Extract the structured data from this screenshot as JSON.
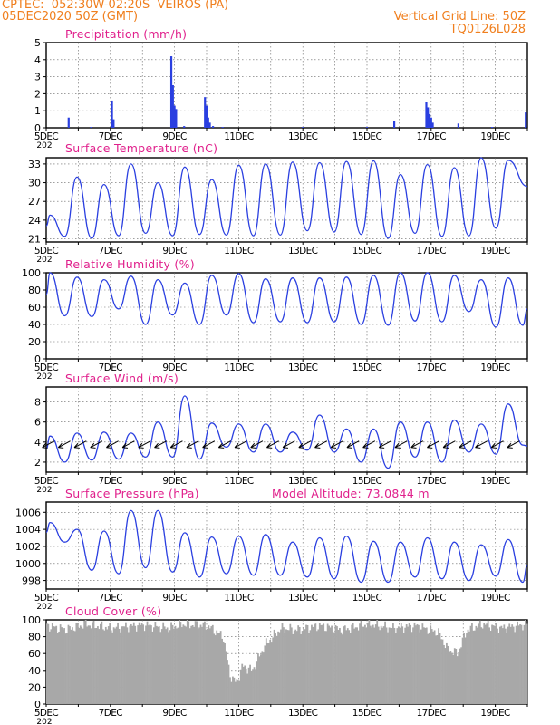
{
  "header": {
    "line1": "CPTEC:  052:30W-02:20S  VEIROS (PA)",
    "line2": "05DEC2020 50Z (GMT)",
    "grid_note": "Vertical Grid Line: 50Z",
    "code": "TQ0126L028"
  },
  "colors": {
    "header": "#f07f1e",
    "title": "#e0208c",
    "series": "#2a3fe0",
    "cloud": "#a8a8a8"
  },
  "x_axis": {
    "tick_labels": [
      "5DEC",
      "7DEC",
      "9DEC",
      "11DEC",
      "13DEC",
      "15DEC",
      "17DEC",
      "19DEC"
    ],
    "year_fragment": "202"
  },
  "chart_data": [
    {
      "type": "bar",
      "title": "Precipitation (mm/h)",
      "ylim": [
        0,
        5
      ],
      "yticks": [
        0,
        1,
        2,
        3,
        4,
        5
      ],
      "x_range_days": [
        5,
        20
      ],
      "bars": [
        {
          "x": 5.7,
          "y": 0.6
        },
        {
          "x": 6.4,
          "y": 0.05
        },
        {
          "x": 7.05,
          "y": 1.6
        },
        {
          "x": 7.1,
          "y": 0.5
        },
        {
          "x": 8.9,
          "y": 4.2
        },
        {
          "x": 8.95,
          "y": 2.5
        },
        {
          "x": 9.0,
          "y": 1.3
        },
        {
          "x": 9.05,
          "y": 1.1
        },
        {
          "x": 9.3,
          "y": 0.1
        },
        {
          "x": 9.95,
          "y": 1.8
        },
        {
          "x": 10.0,
          "y": 1.3
        },
        {
          "x": 10.05,
          "y": 0.6
        },
        {
          "x": 10.1,
          "y": 0.3
        },
        {
          "x": 10.2,
          "y": 0.1
        },
        {
          "x": 10.5,
          "y": 0.05
        },
        {
          "x": 13.0,
          "y": 0.05
        },
        {
          "x": 15.0,
          "y": 0.05
        },
        {
          "x": 15.85,
          "y": 0.4
        },
        {
          "x": 16.85,
          "y": 1.5
        },
        {
          "x": 16.9,
          "y": 1.2
        },
        {
          "x": 16.95,
          "y": 0.8
        },
        {
          "x": 17.0,
          "y": 0.6
        },
        {
          "x": 17.05,
          "y": 0.3
        },
        {
          "x": 17.85,
          "y": 0.25
        },
        {
          "x": 18.9,
          "y": 0.05
        },
        {
          "x": 19.95,
          "y": 0.9
        }
      ]
    },
    {
      "type": "line",
      "title": "Surface Temperature (nC)",
      "ylim": [
        20.5,
        34
      ],
      "yticks": [
        21,
        24,
        27,
        30,
        33
      ],
      "peaks": [
        24.8,
        30.9,
        29.7,
        33.0,
        30.0,
        32.5,
        30.5,
        32.8,
        33.0,
        33.3,
        33.2,
        33.4,
        33.5,
        31.3,
        32.9,
        32.4,
        34.0,
        33.6
      ],
      "troughs": [
        21.4,
        21.1,
        21.5,
        21.9,
        21.5,
        21.7,
        21.6,
        21.5,
        21.6,
        22.3,
        22.1,
        21.7,
        21.1,
        21.9,
        21.4,
        21.5,
        22.7
      ],
      "end_value": 29.4
    },
    {
      "type": "line",
      "title": "Relative Humidity (%)",
      "ylim": [
        0,
        100
      ],
      "yticks": [
        0,
        20,
        40,
        60,
        80,
        100
      ],
      "peaks": [
        100,
        95,
        92,
        96,
        92,
        88,
        97,
        99,
        93,
        94,
        94,
        95,
        97,
        100,
        100,
        97,
        92,
        94
      ],
      "troughs": [
        50,
        49,
        58,
        40,
        51,
        40,
        51,
        42,
        43,
        42,
        43,
        40,
        39,
        44,
        43,
        55,
        37,
        39
      ],
      "end_value": 58
    },
    {
      "type": "line",
      "title": "Surface Wind (m/s)",
      "ylim": [
        1,
        9.5
      ],
      "yticks": [
        2,
        4,
        6,
        8
      ],
      "peaks": [
        4.6,
        4.9,
        5.0,
        4.9,
        6.0,
        8.6,
        5.9,
        5.8,
        5.8,
        5.0,
        6.7,
        5.3,
        5.3,
        6.0,
        6.0,
        6.2,
        5.8,
        7.8
      ],
      "troughs": [
        2.0,
        2.2,
        2.3,
        2.5,
        2.5,
        2.3,
        3.5,
        3.0,
        3.0,
        3.2,
        3.0,
        2.0,
        1.4,
        2.5,
        2.0,
        3.0,
        2.8,
        3.7
      ],
      "end_value": 3.6
    },
    {
      "type": "line",
      "title": "Surface Pressure (hPa)",
      "annotation": "Model Altitude: 73.0844 m",
      "ylim": [
        997,
        1007.2
      ],
      "yticks": [
        998,
        1000,
        1002,
        1004,
        1006
      ],
      "peaks": [
        1004.8,
        1004.0,
        1003.8,
        1006.2,
        1006.2,
        1003.6,
        1003.1,
        1003.2,
        1003.4,
        1002.5,
        1003.0,
        1003.2,
        1002.6,
        1002.5,
        1003.0,
        1002.5,
        1002.2,
        1002.8
      ],
      "troughs": [
        1002.5,
        999.2,
        998.8,
        999.5,
        999.0,
        998.4,
        998.8,
        998.6,
        998.6,
        998.4,
        998.2,
        997.8,
        997.8,
        998.4,
        998.2,
        998.0,
        998.5,
        997.8
      ],
      "end_value": 999.8
    },
    {
      "type": "bar",
      "title": "Cloud Cover (%)",
      "ylim": [
        0,
        100
      ],
      "yticks": [
        0,
        20,
        40,
        60,
        80,
        100
      ],
      "profile": [
        {
          "x": 5.0,
          "y": 93
        },
        {
          "x": 5.6,
          "y": 88
        },
        {
          "x": 6.2,
          "y": 95
        },
        {
          "x": 7.0,
          "y": 90
        },
        {
          "x": 8.0,
          "y": 94
        },
        {
          "x": 8.8,
          "y": 90
        },
        {
          "x": 9.2,
          "y": 95
        },
        {
          "x": 10.0,
          "y": 93
        },
        {
          "x": 10.5,
          "y": 80
        },
        {
          "x": 10.7,
          "y": 35
        },
        {
          "x": 10.9,
          "y": 25
        },
        {
          "x": 11.1,
          "y": 45
        },
        {
          "x": 11.4,
          "y": 40
        },
        {
          "x": 11.8,
          "y": 70
        },
        {
          "x": 12.3,
          "y": 90
        },
        {
          "x": 12.8,
          "y": 88
        },
        {
          "x": 13.5,
          "y": 93
        },
        {
          "x": 14.2,
          "y": 88
        },
        {
          "x": 15.0,
          "y": 95
        },
        {
          "x": 15.8,
          "y": 90
        },
        {
          "x": 16.5,
          "y": 93
        },
        {
          "x": 17.2,
          "y": 85
        },
        {
          "x": 17.5,
          "y": 65
        },
        {
          "x": 17.8,
          "y": 60
        },
        {
          "x": 18.1,
          "y": 88
        },
        {
          "x": 18.6,
          "y": 95
        },
        {
          "x": 19.2,
          "y": 90
        },
        {
          "x": 20.0,
          "y": 95
        }
      ]
    }
  ]
}
